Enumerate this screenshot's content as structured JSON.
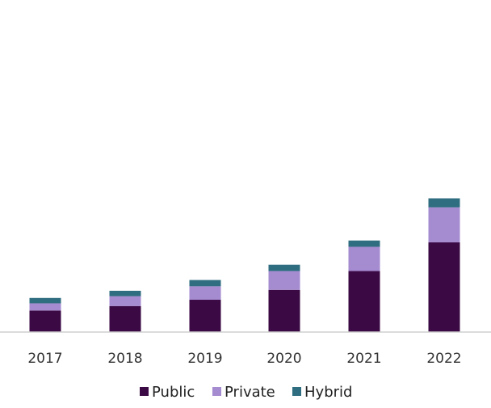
{
  "chart_data": {
    "type": "bar",
    "stacked": true,
    "categories": [
      "2017",
      "2018",
      "2019",
      "2020",
      "2021",
      "2022"
    ],
    "series": [
      {
        "name": "Public",
        "color": "#3b0a45",
        "values": [
          24,
          29,
          36,
          47,
          68,
          100
        ]
      },
      {
        "name": "Private",
        "color": "#a58bd0",
        "values": [
          8,
          11,
          15,
          21,
          27,
          39
        ]
      },
      {
        "name": "Hybrid",
        "color": "#2f6e80",
        "values": [
          6,
          6,
          7,
          7,
          7,
          10
        ]
      }
    ],
    "ylim": [
      0,
      370
    ],
    "grid": false,
    "legend_position": "bottom"
  }
}
